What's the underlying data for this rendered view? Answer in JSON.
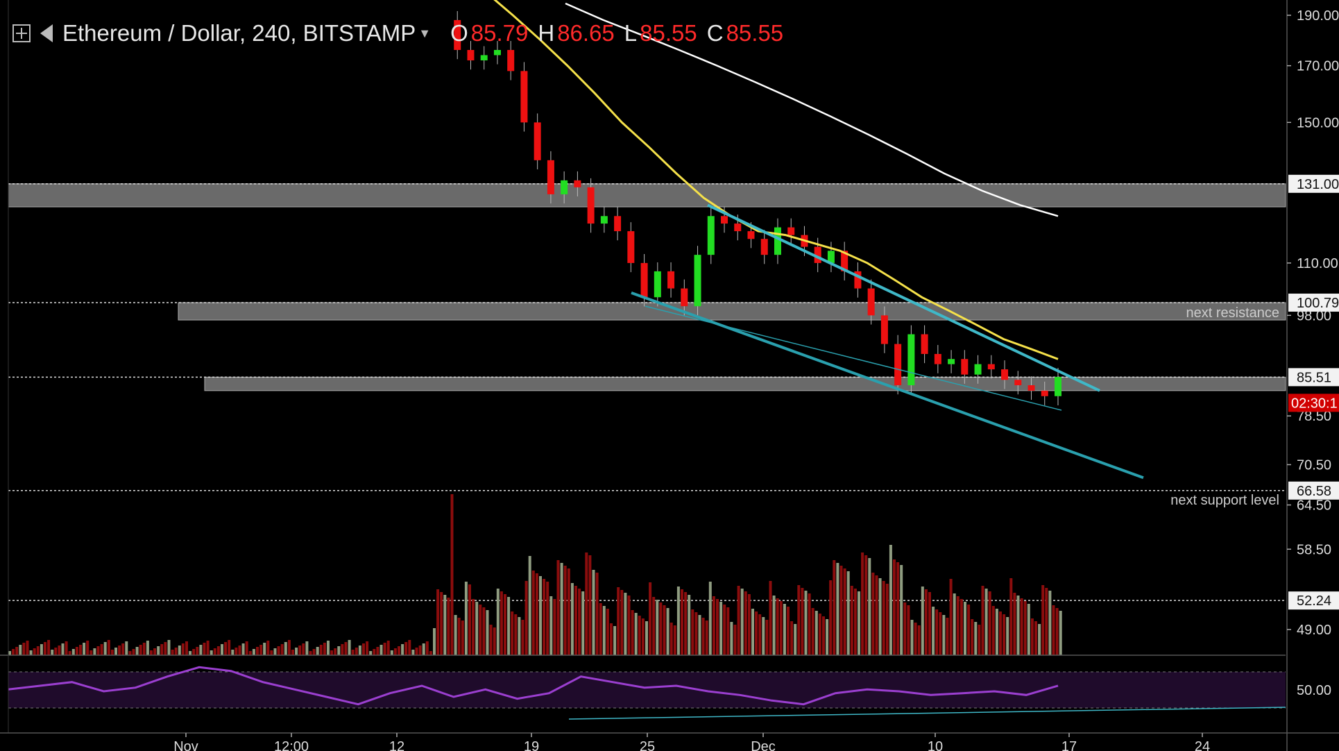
{
  "header": {
    "symbol": "Ethereum / Dollar, 240, BITSTAMP",
    "o_label": "O",
    "o_value": "85.79",
    "h_label": "H",
    "h_value": "86.65",
    "l_label": "L",
    "l_value": "85.55",
    "c_label": "C",
    "c_value": "85.55"
  },
  "annotations": {
    "resistance": "next resistance",
    "support": "next support level"
  },
  "colors": {
    "background": "#000000",
    "up_candle": "#22dd22",
    "down_candle": "#ee1111",
    "zone": "#6a6a6a",
    "trendline": "#3fb8c8",
    "ma_yellow": "#f5e14a",
    "ma_white": "#ffffff",
    "rsi": "#9b3fd0",
    "countdown_bg": "#d10000"
  },
  "chart_data": {
    "type": "candlestick",
    "title": "Ethereum / Dollar, 240, BITSTAMP",
    "price_axis": {
      "ticks": [
        "190.00",
        "170.00",
        "150.00",
        "131.00",
        "110.00",
        "100.79",
        "98.00",
        "85.51",
        "78.50",
        "70.50",
        "66.58",
        "64.50",
        "58.50",
        "52.24",
        "49.00"
      ],
      "highlighted": [
        {
          "value": "131.00",
          "style": "light"
        },
        {
          "value": "100.79",
          "style": "light"
        },
        {
          "value": "85.51",
          "style": "light"
        },
        {
          "value": "66.58",
          "style": "light"
        },
        {
          "value": "52.24",
          "style": "light"
        }
      ],
      "countdown": "02:30:1"
    },
    "rsi_axis": {
      "ticks": [
        "50.00"
      ]
    },
    "time_axis": {
      "ticks": [
        "Nov",
        "12:00",
        "12",
        "19",
        "25",
        "Dec",
        "10",
        "17",
        "24"
      ]
    },
    "price_scale": "log",
    "horizontal_levels": [
      131.0,
      100.79,
      85.51,
      66.58,
      52.24
    ],
    "zones": [
      {
        "low": 124.5,
        "high": 131.0,
        "label": ""
      },
      {
        "low": 97.0,
        "high": 100.79,
        "label": "next resistance"
      },
      {
        "low": 83.0,
        "high": 85.51,
        "label": ""
      }
    ],
    "close_series": [
      188,
      176,
      172,
      174,
      176,
      168,
      150,
      138,
      128,
      132,
      130,
      120,
      122,
      118,
      110,
      102,
      108,
      104,
      100,
      112,
      122,
      120,
      118,
      116,
      112,
      119,
      117,
      114,
      110,
      113,
      108,
      104,
      98,
      92,
      84,
      94,
      90,
      88,
      89,
      86,
      88,
      87,
      85,
      84,
      83,
      82,
      85.55
    ],
    "ma_yellow": [
      200,
      190,
      180,
      170,
      160,
      150,
      142,
      134,
      127,
      122,
      118,
      117,
      115,
      113,
      110,
      106,
      102,
      99,
      96,
      93,
      91,
      89
    ],
    "ma_white": [
      195,
      188,
      182,
      176,
      170,
      164,
      158,
      152,
      146,
      140,
      134,
      129,
      125,
      122
    ],
    "rsi": [
      48,
      50,
      52,
      47,
      49,
      55,
      60,
      58,
      52,
      48,
      44,
      40,
      46,
      50,
      44,
      48,
      43,
      46,
      55,
      52,
      49,
      50,
      47,
      45,
      42,
      40,
      46,
      48,
      47,
      45,
      46,
      47,
      45,
      50
    ]
  }
}
